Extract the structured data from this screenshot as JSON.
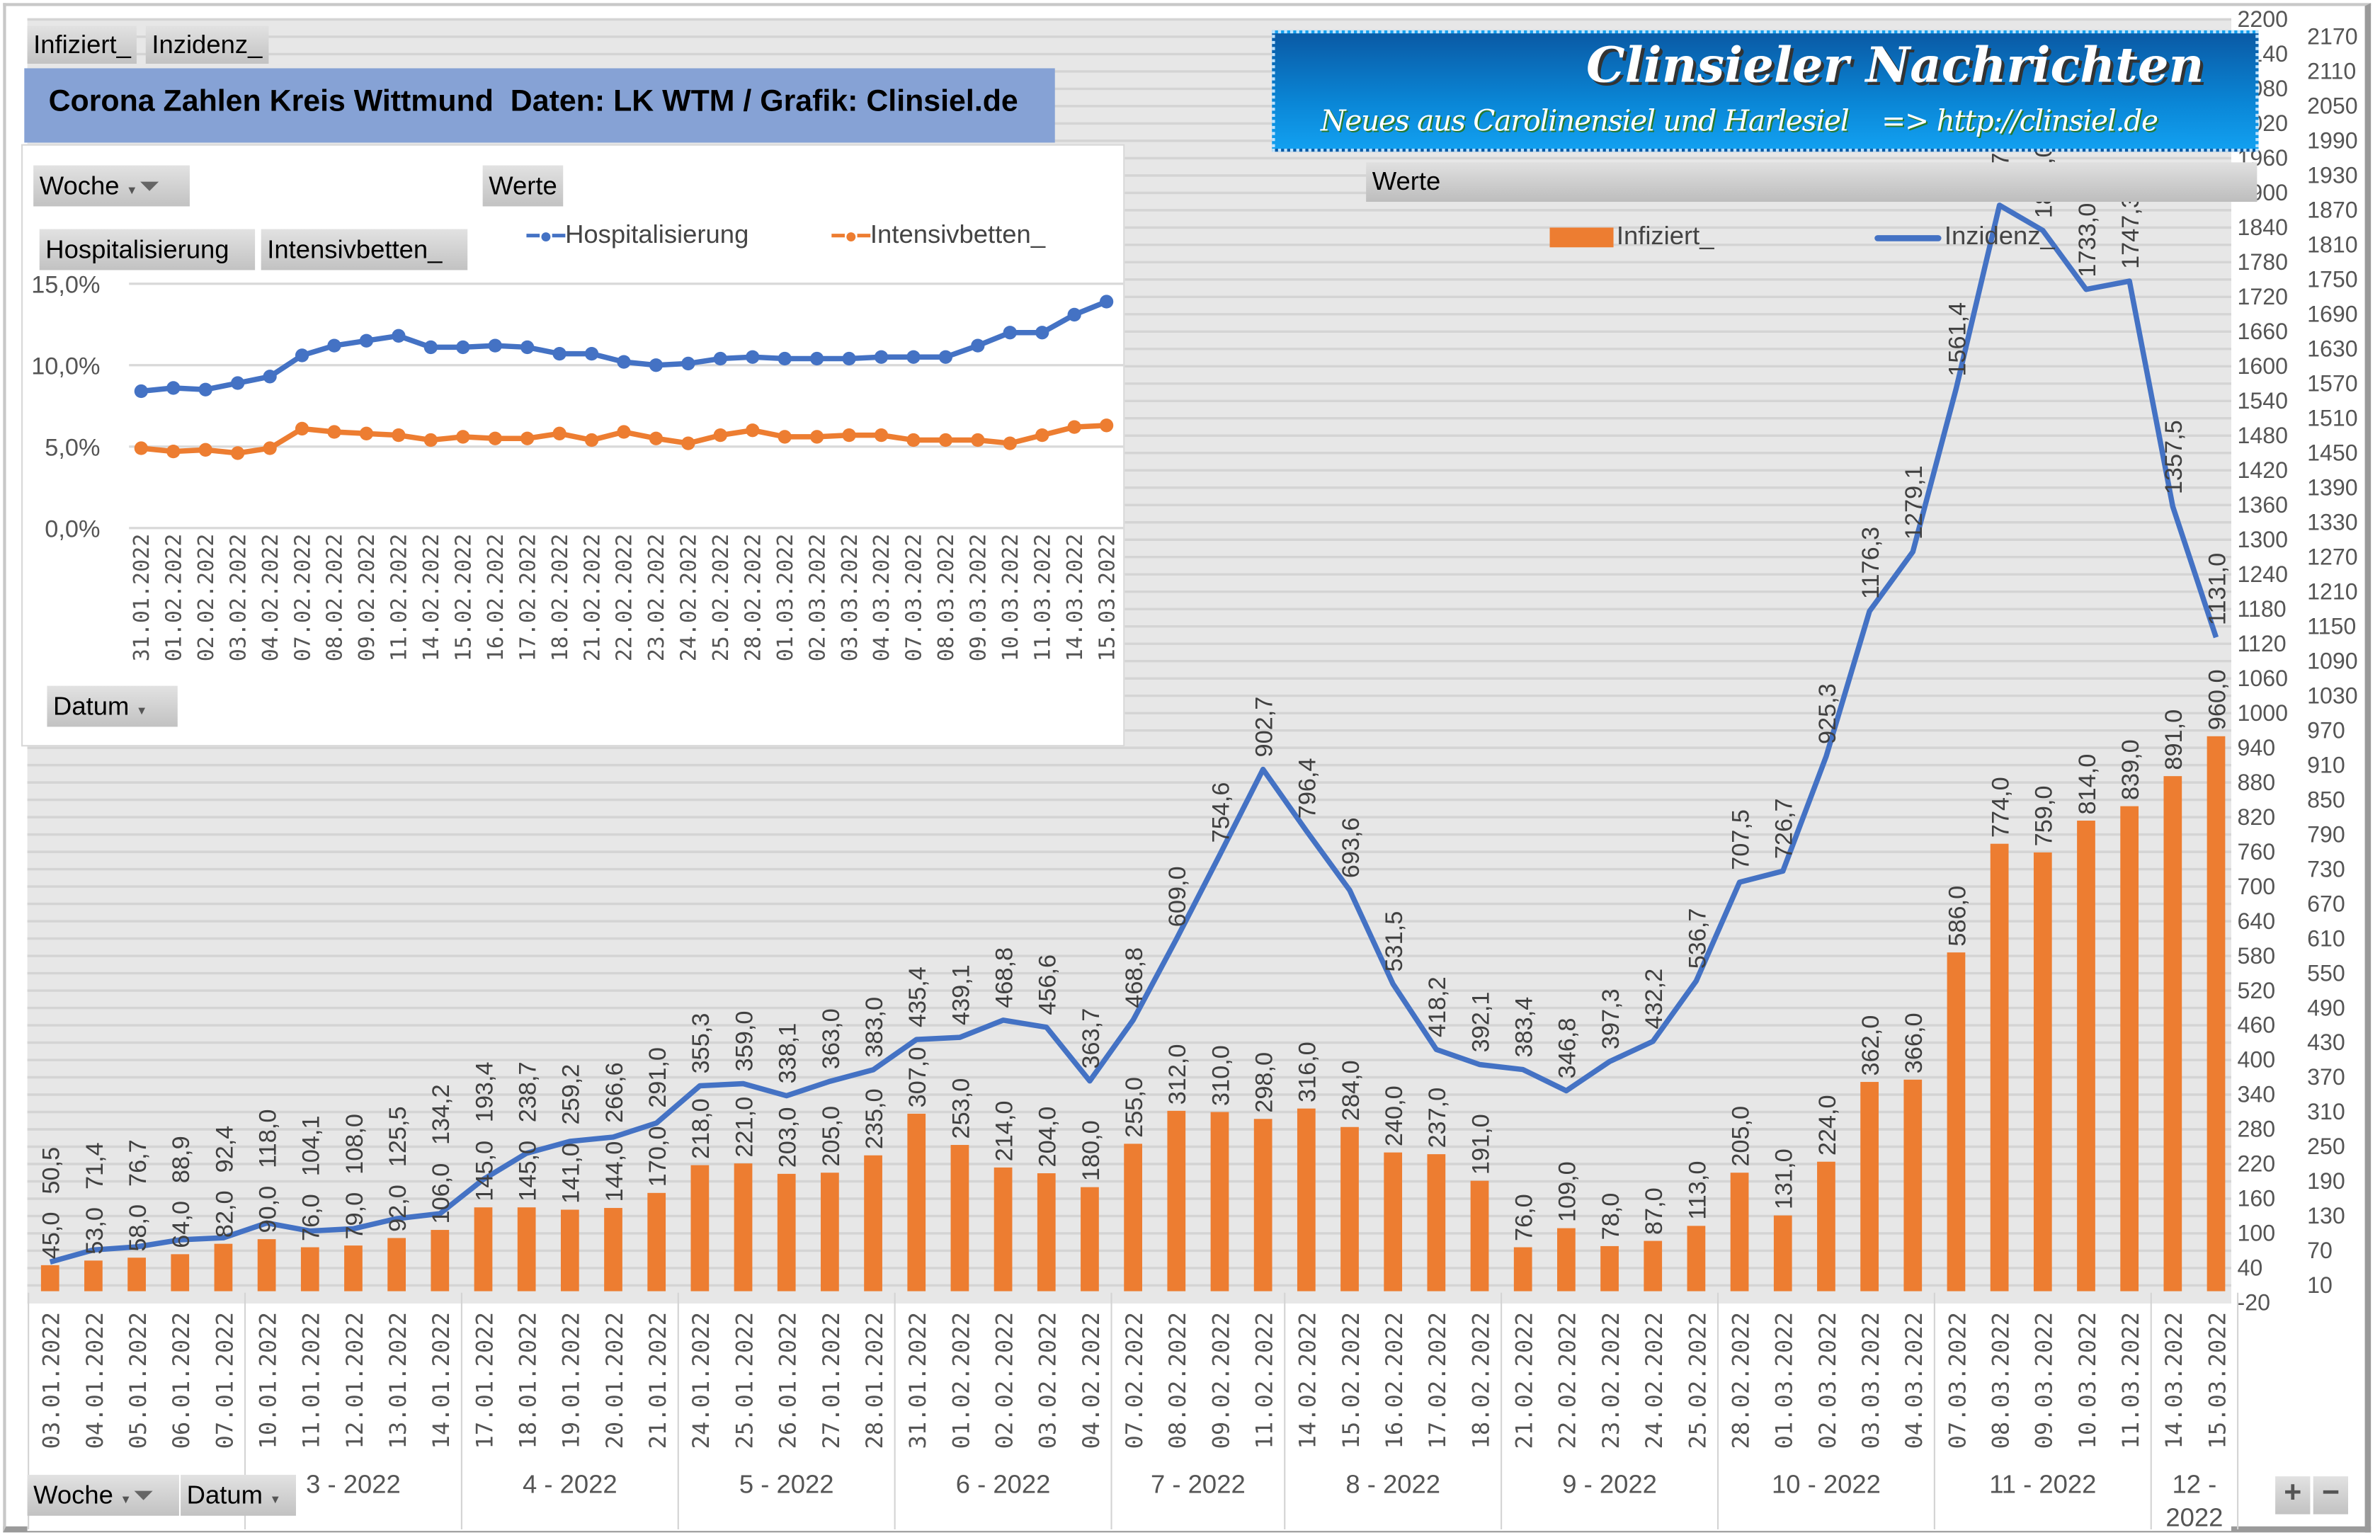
{
  "header": {
    "field_buttons": [
      "Infiziert_",
      "Inzidenz_"
    ],
    "title": "Corona Zahlen Kreis Wittmund  Daten: LK WTM / Grafik: Clinsiel.de"
  },
  "logo": {
    "line1": "Clinsieler Nachrichten",
    "line2": "Neues aus Carolinensiel und Harlesiel    => http://clinsiel.de"
  },
  "werte_label": "Werte",
  "bottom_buttons": {
    "woche": "Woche",
    "datum": "Datum"
  },
  "zoom_buttons": {
    "plus": "+",
    "minus": "−"
  },
  "colors": {
    "infiziert": "#ed7d31",
    "inzidenz": "#4472c4",
    "plot_bg": "#e7e7e7",
    "title_bg": "#86a2d5"
  },
  "icons": {
    "filter": "filter-icon",
    "dropdown": "dropdown-arrow-icon"
  },
  "chart_data": [
    {
      "type": "bar+line",
      "legend": [
        "Infiziert_",
        "Inzidenz_"
      ],
      "legend_position": "top",
      "ylim": [
        -20,
        2200
      ],
      "ytick_step": 30,
      "grid": true,
      "x": [
        "03.01.2022",
        "04.01.2022",
        "05.01.2022",
        "06.01.2022",
        "07.01.2022",
        "10.01.2022",
        "11.01.2022",
        "12.01.2022",
        "13.01.2022",
        "14.01.2022",
        "17.01.2022",
        "18.01.2022",
        "19.01.2022",
        "20.01.2022",
        "21.01.2022",
        "24.01.2022",
        "25.01.2022",
        "26.01.2022",
        "27.01.2022",
        "28.01.2022",
        "31.01.2022",
        "01.02.2022",
        "02.02.2022",
        "03.02.2022",
        "04.02.2022",
        "07.02.2022",
        "08.02.2022",
        "09.02.2022",
        "11.02.2022",
        "14.02.2022",
        "15.02.2022",
        "16.02.2022",
        "17.02.2022",
        "18.02.2022",
        "21.02.2022",
        "22.02.2022",
        "23.02.2022",
        "24.02.2022",
        "25.02.2022",
        "28.02.2022",
        "01.03.2022",
        "02.03.2022",
        "03.03.2022",
        "04.03.2022",
        "07.03.2022",
        "08.03.2022",
        "09.03.2022",
        "10.03.2022",
        "11.03.2022",
        "14.03.2022",
        "15.03.2022"
      ],
      "week_groups": [
        {
          "label": "",
          "count": 5
        },
        {
          "label": "3 - 2022",
          "count": 5
        },
        {
          "label": "4 - 2022",
          "count": 5
        },
        {
          "label": "5 - 2022",
          "count": 5
        },
        {
          "label": "6 - 2022",
          "count": 5
        },
        {
          "label": "7 - 2022",
          "count": 4
        },
        {
          "label": "8 - 2022",
          "count": 5
        },
        {
          "label": "9 - 2022",
          "count": 5
        },
        {
          "label": "10 - 2022",
          "count": 5
        },
        {
          "label": "11 - 2022",
          "count": 5
        },
        {
          "label": "12 - 2022",
          "count": 2
        }
      ],
      "series": [
        {
          "name": "Infiziert_",
          "type": "bar",
          "values": [
            45,
            53,
            58,
            64,
            82,
            90,
            76,
            79,
            92,
            106,
            145,
            145,
            141,
            144,
            170,
            218,
            221,
            203,
            205,
            235,
            307,
            253,
            214,
            204,
            180,
            255,
            312,
            310,
            298,
            316,
            284,
            240,
            237,
            191,
            76,
            109,
            78,
            87,
            113,
            205,
            131,
            224,
            362,
            366,
            586,
            774,
            759,
            814,
            839,
            891,
            960
          ]
        },
        {
          "name": "Inzidenz_",
          "type": "line",
          "values": [
            50.5,
            71.4,
            76.7,
            88.9,
            92.4,
            118.0,
            104.1,
            108.0,
            125.5,
            134.2,
            193.4,
            238.7,
            259.2,
            266.6,
            291.0,
            355.3,
            359.0,
            338.1,
            363.0,
            383.0,
            435.4,
            439.1,
            468.8,
            456.6,
            363.7,
            468.8,
            609.0,
            754.6,
            902.7,
            796.4,
            693.6,
            531.5,
            418.2,
            392.1,
            383.4,
            346.8,
            397.3,
            432.2,
            536.7,
            707.5,
            726.7,
            925.3,
            1176.3,
            1279.1,
            1561.4,
            1878.6,
            1835.0,
            1733.0,
            1747.3,
            1357.5,
            1131.0
          ]
        }
      ]
    },
    {
      "type": "line",
      "buttons": {
        "woche": "Woche",
        "werte": "Werte",
        "hosp": "Hospitalisierung",
        "intens": "Intensivbetten_",
        "datum": "Datum"
      },
      "legend": [
        "Hospitalisierung",
        "Intensivbetten_"
      ],
      "legend_position": "top",
      "ylim": [
        0,
        15
      ],
      "yticks": [
        "0,0%",
        "5,0%",
        "10,0%",
        "15,0%"
      ],
      "grid": true,
      "x": [
        "31.01.2022",
        "01.02.2022",
        "02.02.2022",
        "03.02.2022",
        "04.02.2022",
        "07.02.2022",
        "08.02.2022",
        "09.02.2022",
        "11.02.2022",
        "14.02.2022",
        "15.02.2022",
        "16.02.2022",
        "17.02.2022",
        "18.02.2022",
        "21.02.2022",
        "22.02.2022",
        "23.02.2022",
        "24.02.2022",
        "25.02.2022",
        "28.02.2022",
        "01.03.2022",
        "02.03.2022",
        "03.03.2022",
        "04.03.2022",
        "07.03.2022",
        "08.03.2022",
        "09.03.2022",
        "10.03.2022",
        "11.03.2022",
        "14.03.2022",
        "15.03.2022"
      ],
      "series": [
        {
          "name": "Hospitalisierung",
          "unit": "%",
          "values": [
            8.4,
            8.6,
            8.5,
            8.9,
            9.3,
            10.6,
            11.2,
            11.5,
            11.8,
            11.1,
            11.1,
            11.2,
            11.1,
            10.7,
            10.7,
            10.2,
            10.0,
            10.1,
            10.4,
            10.5,
            10.4,
            10.4,
            10.4,
            10.5,
            10.5,
            10.5,
            11.2,
            12.0,
            12.0,
            13.1,
            13.9
          ]
        },
        {
          "name": "Intensivbetten_",
          "unit": "%",
          "values": [
            4.9,
            4.7,
            4.8,
            4.6,
            4.9,
            6.1,
            5.9,
            5.8,
            5.7,
            5.4,
            5.6,
            5.5,
            5.5,
            5.8,
            5.4,
            5.9,
            5.5,
            5.2,
            5.7,
            6.0,
            5.6,
            5.6,
            5.7,
            5.7,
            5.4,
            5.4,
            5.4,
            5.2,
            5.7,
            6.2,
            6.3
          ]
        }
      ]
    }
  ]
}
